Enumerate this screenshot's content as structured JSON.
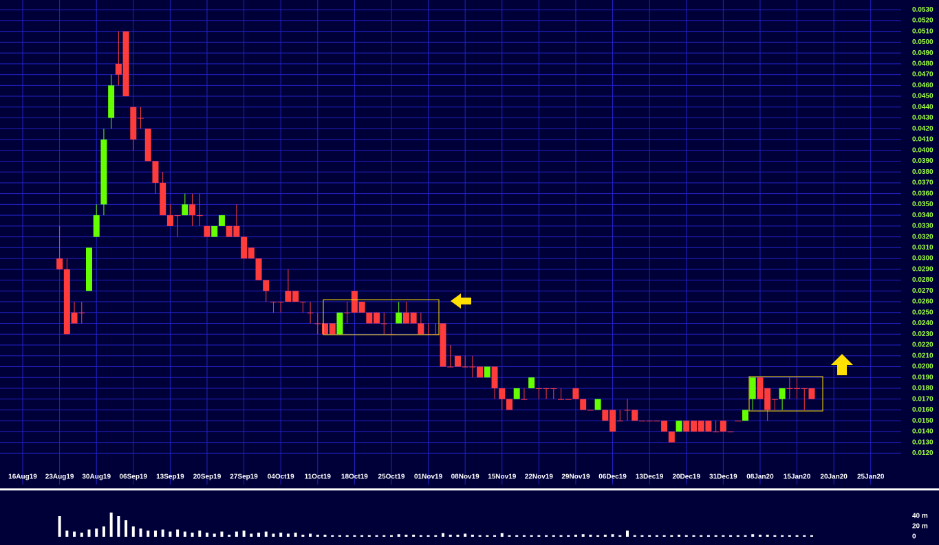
{
  "chart_data": {
    "type": "candlestick",
    "xlim": [
      -8.08,
      114.13
    ],
    "xticks": [
      {
        "value": -5,
        "label": "16Aug19"
      },
      {
        "value": 0,
        "label": "23Aug19"
      },
      {
        "value": 5,
        "label": "30Aug19"
      },
      {
        "value": 10,
        "label": "06Sep19"
      },
      {
        "value": 15,
        "label": "13Sep19"
      },
      {
        "value": 20,
        "label": "20Sep19"
      },
      {
        "value": 25,
        "label": "27Sep19"
      },
      {
        "value": 30,
        "label": "04Oct19"
      },
      {
        "value": 35,
        "label": "11Oct19"
      },
      {
        "value": 40,
        "label": "18Oct19"
      },
      {
        "value": 45,
        "label": "25Oct19"
      },
      {
        "value": 50,
        "label": "01Nov19"
      },
      {
        "value": 55,
        "label": "08Nov19"
      },
      {
        "value": 60,
        "label": "15Nov19"
      },
      {
        "value": 65,
        "label": "22Nov19"
      },
      {
        "value": 70,
        "label": "29Nov19"
      },
      {
        "value": 75,
        "label": "06Dec19"
      },
      {
        "value": 80,
        "label": "13Dec19"
      },
      {
        "value": 85,
        "label": "20Dec19"
      },
      {
        "value": 90,
        "label": "31Dec19"
      },
      {
        "value": 95,
        "label": "08Jan20"
      },
      {
        "value": 100,
        "label": "15Jan20"
      },
      {
        "value": 105,
        "label": "20Jan20"
      },
      {
        "value": 110,
        "label": "25Jan20"
      }
    ],
    "ylim": [
      0.0091,
      0.0539
    ],
    "yticks": [
      {
        "value": 0.012,
        "label": "0.0120"
      },
      {
        "value": 0.013,
        "label": "0.0130"
      },
      {
        "value": 0.014,
        "label": "0.0140"
      },
      {
        "value": 0.015,
        "label": "0.0150"
      },
      {
        "value": 0.016,
        "label": "0.0160"
      },
      {
        "value": 0.017,
        "label": "0.0170"
      },
      {
        "value": 0.018,
        "label": "0.0180"
      },
      {
        "value": 0.019,
        "label": "0.0190"
      },
      {
        "value": 0.02,
        "label": "0.0200"
      },
      {
        "value": 0.021,
        "label": "0.0210"
      },
      {
        "value": 0.022,
        "label": "0.0220"
      },
      {
        "value": 0.023,
        "label": "0.0230"
      },
      {
        "value": 0.024,
        "label": "0.0240"
      },
      {
        "value": 0.025,
        "label": "0.0250"
      },
      {
        "value": 0.026,
        "label": "0.0260"
      },
      {
        "value": 0.027,
        "label": "0.0270"
      },
      {
        "value": 0.028,
        "label": "0.0280"
      },
      {
        "value": 0.029,
        "label": "0.0290"
      },
      {
        "value": 0.03,
        "label": "0.0300"
      },
      {
        "value": 0.031,
        "label": "0.0310"
      },
      {
        "value": 0.032,
        "label": "0.0320"
      },
      {
        "value": 0.033,
        "label": "0.0330"
      },
      {
        "value": 0.034,
        "label": "0.0340"
      },
      {
        "value": 0.035,
        "label": "0.0350"
      },
      {
        "value": 0.036,
        "label": "0.0360"
      },
      {
        "value": 0.037,
        "label": "0.0370"
      },
      {
        "value": 0.038,
        "label": "0.0380"
      },
      {
        "value": 0.039,
        "label": "0.0390"
      },
      {
        "value": 0.04,
        "label": "0.0400"
      },
      {
        "value": 0.041,
        "label": "0.0410"
      },
      {
        "value": 0.042,
        "label": "0.0420"
      },
      {
        "value": 0.043,
        "label": "0.0430"
      },
      {
        "value": 0.044,
        "label": "0.0440"
      },
      {
        "value": 0.045,
        "label": "0.0450"
      },
      {
        "value": 0.046,
        "label": "0.0460"
      },
      {
        "value": 0.047,
        "label": "0.0470"
      },
      {
        "value": 0.048,
        "label": "0.0480"
      },
      {
        "value": 0.049,
        "label": "0.0490"
      },
      {
        "value": 0.05,
        "label": "0.0500"
      },
      {
        "value": 0.051,
        "label": "0.0510"
      },
      {
        "value": 0.052,
        "label": "0.0520"
      },
      {
        "value": 0.053,
        "label": "0.0530"
      }
    ],
    "grid": true,
    "up_color": "#66ff00",
    "down_color": "#ff3c3c",
    "volume_color": "#ffffff",
    "x": [
      0,
      1,
      2,
      3,
      4,
      5,
      6,
      7,
      8,
      9,
      10,
      11,
      12,
      13,
      14,
      15,
      16,
      17,
      18,
      19,
      20,
      21,
      22,
      23,
      24,
      25,
      26,
      27,
      28,
      29,
      30,
      31,
      32,
      33,
      34,
      35,
      36,
      37,
      38,
      39,
      40,
      41,
      42,
      43,
      44,
      45,
      46,
      47,
      48,
      49,
      50,
      51,
      52,
      53,
      54,
      55,
      56,
      57,
      58,
      59,
      60,
      61,
      62,
      63,
      64,
      65,
      66,
      67,
      68,
      69,
      70,
      71,
      72,
      73,
      74,
      75,
      76,
      77,
      78,
      79,
      80,
      81,
      82,
      83,
      84,
      85,
      86,
      87,
      88,
      89,
      90,
      91,
      92,
      93,
      94,
      95,
      96,
      97,
      98,
      99,
      100,
      101,
      102
    ],
    "open": [
      0.03,
      0.029,
      0.025,
      0.025,
      0.027,
      0.032,
      0.035,
      0.043,
      0.048,
      0.051,
      0.044,
      0.043,
      0.042,
      0.039,
      0.037,
      0.034,
      0.034,
      0.034,
      0.035,
      0.034,
      0.033,
      0.032,
      0.033,
      0.033,
      0.033,
      0.032,
      0.031,
      0.03,
      0.028,
      0.026,
      0.026,
      0.027,
      0.027,
      0.026,
      0.025,
      0.024,
      0.024,
      0.024,
      0.023,
      0.025,
      0.027,
      0.026,
      0.025,
      0.025,
      0.024,
      0.023,
      0.024,
      0.025,
      0.025,
      0.024,
      0.023,
      0.023,
      0.024,
      0.02,
      0.021,
      0.02,
      0.02,
      0.02,
      0.019,
      0.02,
      0.018,
      0.017,
      0.017,
      0.017,
      0.018,
      0.018,
      0.018,
      0.018,
      0.017,
      0.017,
      0.018,
      0.017,
      0.016,
      0.016,
      0.016,
      0.016,
      0.015,
      0.016,
      0.016,
      0.015,
      0.015,
      0.015,
      0.015,
      0.014,
      0.014,
      0.015,
      0.015,
      0.015,
      0.015,
      0.014,
      0.015,
      0.014,
      0.015,
      0.015,
      0.017,
      0.019,
      0.018,
      0.017,
      0.017,
      0.018,
      0.018,
      0.018,
      0.018
    ],
    "high": [
      0.033,
      0.03,
      0.026,
      0.026,
      0.031,
      0.035,
      0.042,
      0.047,
      0.051,
      0.051,
      0.044,
      0.044,
      0.042,
      0.039,
      0.038,
      0.035,
      0.034,
      0.036,
      0.036,
      0.036,
      0.033,
      0.033,
      0.034,
      0.033,
      0.035,
      0.032,
      0.031,
      0.03,
      0.028,
      0.026,
      0.026,
      0.029,
      0.027,
      0.026,
      0.026,
      0.025,
      0.024,
      0.024,
      0.025,
      0.026,
      0.027,
      0.026,
      0.025,
      0.025,
      0.025,
      0.024,
      0.026,
      0.026,
      0.025,
      0.025,
      0.024,
      0.024,
      0.024,
      0.022,
      0.021,
      0.021,
      0.021,
      0.02,
      0.02,
      0.02,
      0.018,
      0.017,
      0.018,
      0.018,
      0.019,
      0.018,
      0.018,
      0.018,
      0.018,
      0.017,
      0.018,
      0.017,
      0.016,
      0.017,
      0.016,
      0.016,
      0.016,
      0.017,
      0.016,
      0.015,
      0.015,
      0.015,
      0.015,
      0.014,
      0.015,
      0.015,
      0.015,
      0.015,
      0.015,
      0.015,
      0.015,
      0.014,
      0.015,
      0.016,
      0.019,
      0.019,
      0.018,
      0.017,
      0.018,
      0.019,
      0.019,
      0.018,
      0.018
    ],
    "low": [
      0.029,
      0.023,
      0.024,
      0.024,
      0.027,
      0.032,
      0.034,
      0.042,
      0.046,
      0.045,
      0.04,
      0.042,
      0.039,
      0.036,
      0.034,
      0.033,
      0.032,
      0.034,
      0.033,
      0.033,
      0.032,
      0.032,
      0.033,
      0.032,
      0.032,
      0.03,
      0.03,
      0.028,
      0.026,
      0.025,
      0.025,
      0.026,
      0.026,
      0.025,
      0.024,
      0.023,
      0.023,
      0.023,
      0.023,
      0.024,
      0.025,
      0.025,
      0.024,
      0.024,
      0.023,
      0.023,
      0.024,
      0.024,
      0.024,
      0.023,
      0.023,
      0.023,
      0.02,
      0.02,
      0.02,
      0.02,
      0.019,
      0.019,
      0.019,
      0.017,
      0.016,
      0.016,
      0.017,
      0.017,
      0.018,
      0.017,
      0.017,
      0.017,
      0.017,
      0.017,
      0.017,
      0.016,
      0.016,
      0.016,
      0.015,
      0.014,
      0.015,
      0.015,
      0.015,
      0.015,
      0.015,
      0.015,
      0.014,
      0.013,
      0.014,
      0.014,
      0.014,
      0.014,
      0.014,
      0.014,
      0.014,
      0.014,
      0.015,
      0.015,
      0.016,
      0.017,
      0.015,
      0.016,
      0.016,
      0.017,
      0.017,
      0.016,
      0.017
    ],
    "close": [
      0.029,
      0.023,
      0.024,
      0.025,
      0.031,
      0.034,
      0.041,
      0.046,
      0.047,
      0.045,
      0.041,
      0.043,
      0.039,
      0.037,
      0.034,
      0.033,
      0.034,
      0.035,
      0.034,
      0.034,
      0.032,
      0.033,
      0.034,
      0.032,
      0.032,
      0.03,
      0.03,
      0.028,
      0.027,
      0.026,
      0.026,
      0.026,
      0.026,
      0.026,
      0.025,
      0.024,
      0.023,
      0.023,
      0.025,
      0.025,
      0.025,
      0.025,
      0.024,
      0.024,
      0.024,
      0.023,
      0.025,
      0.024,
      0.024,
      0.023,
      0.023,
      0.023,
      0.02,
      0.02,
      0.02,
      0.02,
      0.02,
      0.019,
      0.02,
      0.018,
      0.017,
      0.016,
      0.018,
      0.017,
      0.019,
      0.018,
      0.018,
      0.018,
      0.017,
      0.017,
      0.017,
      0.016,
      0.016,
      0.017,
      0.015,
      0.014,
      0.015,
      0.016,
      0.015,
      0.015,
      0.015,
      0.015,
      0.014,
      0.013,
      0.015,
      0.014,
      0.014,
      0.014,
      0.014,
      0.014,
      0.014,
      0.014,
      0.015,
      0.016,
      0.019,
      0.017,
      0.016,
      0.017,
      0.018,
      0.018,
      0.018,
      0.018,
      0.017
    ],
    "volume": [
      40,
      12,
      10,
      8,
      14,
      16,
      20,
      47,
      40,
      32,
      20,
      16,
      12,
      12,
      14,
      10,
      14,
      10,
      8,
      12,
      8,
      6,
      10,
      4,
      10,
      12,
      6,
      8,
      10,
      6,
      8,
      6,
      8,
      4,
      6,
      4,
      4,
      3,
      3,
      3,
      3,
      3,
      3,
      3,
      3,
      3,
      5,
      4,
      4,
      3,
      3,
      3,
      7,
      4,
      4,
      6,
      4,
      3,
      3,
      3,
      7,
      3,
      3,
      3,
      3,
      3,
      3,
      3,
      3,
      3,
      4,
      5,
      4,
      3,
      4,
      5,
      3,
      12,
      3,
      3,
      3,
      3,
      3,
      3,
      4,
      3,
      3,
      3,
      3,
      3,
      3,
      3,
      3,
      3,
      5,
      4,
      4,
      3,
      3,
      3,
      3,
      3,
      3
    ],
    "vlim": [
      0,
      80
    ],
    "vticks": [
      {
        "value": 40,
        "label": "40 m"
      },
      {
        "value": 20,
        "label": "20 m"
      },
      0
    ]
  }
}
